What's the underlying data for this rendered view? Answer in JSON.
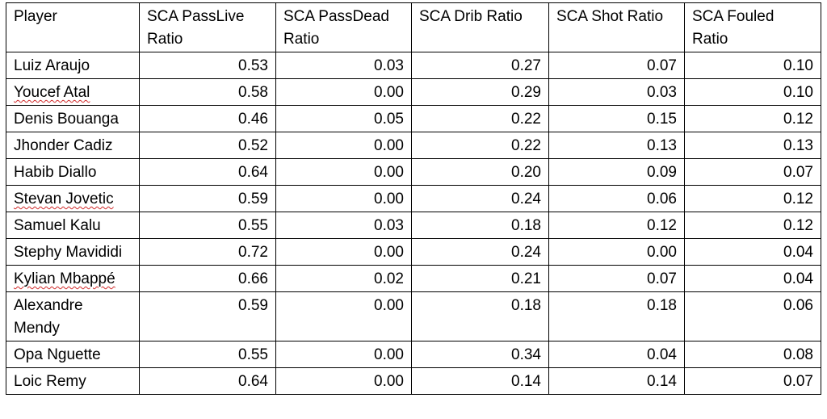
{
  "table": {
    "headers": [
      "Player",
      "SCA PassLive Ratio",
      "SCA PassDead Ratio",
      "SCA Drib Ratio",
      "SCA Shot Ratio",
      "SCA Fouled Ratio"
    ],
    "rows": [
      {
        "player": "Luiz Araujo",
        "spell_flag": false,
        "values": [
          "0.53",
          "0.03",
          "0.27",
          "0.07",
          "0.10"
        ]
      },
      {
        "player": "Youcef Atal",
        "spell_flag": true,
        "values": [
          "0.58",
          "0.00",
          "0.29",
          "0.03",
          "0.10"
        ]
      },
      {
        "player": "Denis Bouanga",
        "spell_flag": false,
        "values": [
          "0.46",
          "0.05",
          "0.22",
          "0.15",
          "0.12"
        ]
      },
      {
        "player": "Jhonder Cadiz",
        "spell_flag": false,
        "values": [
          "0.52",
          "0.00",
          "0.22",
          "0.13",
          "0.13"
        ]
      },
      {
        "player": "Habib Diallo",
        "spell_flag": false,
        "values": [
          "0.64",
          "0.00",
          "0.20",
          "0.09",
          "0.07"
        ]
      },
      {
        "player": "Stevan Jovetic",
        "spell_flag": true,
        "values": [
          "0.59",
          "0.00",
          "0.24",
          "0.06",
          "0.12"
        ]
      },
      {
        "player": "Samuel Kalu",
        "spell_flag": false,
        "values": [
          "0.55",
          "0.03",
          "0.18",
          "0.12",
          "0.12"
        ]
      },
      {
        "player": "Stephy Mavididi",
        "spell_flag": false,
        "values": [
          "0.72",
          "0.00",
          "0.24",
          "0.00",
          "0.04"
        ]
      },
      {
        "player": "Kylian Mbappé",
        "spell_flag": true,
        "values": [
          "0.66",
          "0.02",
          "0.21",
          "0.07",
          "0.04"
        ]
      },
      {
        "player": "Alexandre Mendy",
        "spell_flag": false,
        "values": [
          "0.59",
          "0.00",
          "0.18",
          "0.18",
          "0.06"
        ]
      },
      {
        "player": "Opa Nguette",
        "spell_flag": false,
        "values": [
          "0.55",
          "0.00",
          "0.34",
          "0.04",
          "0.08"
        ]
      },
      {
        "player": "Loic Remy",
        "spell_flag": false,
        "values": [
          "0.64",
          "0.00",
          "0.14",
          "0.14",
          "0.07"
        ]
      }
    ]
  }
}
